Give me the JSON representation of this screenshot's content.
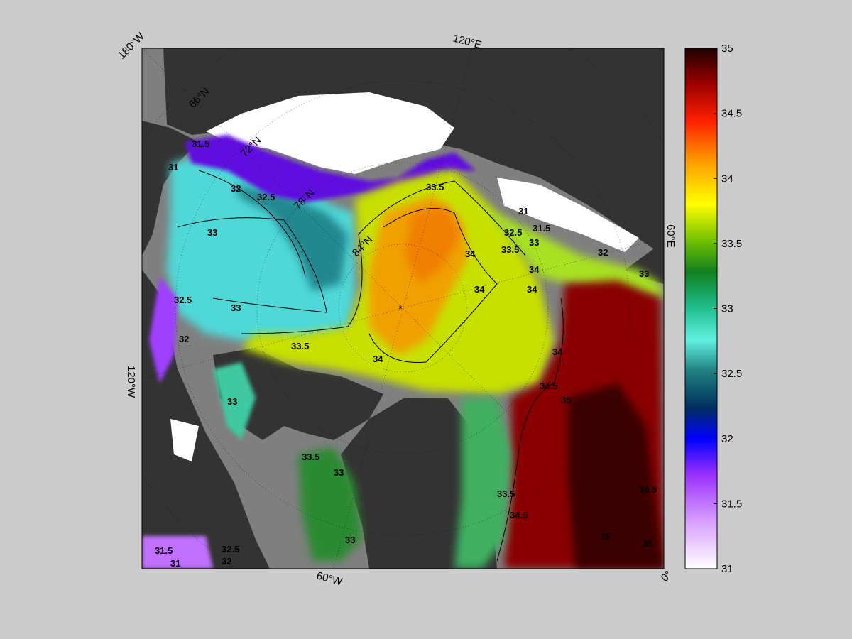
{
  "map": {
    "pole_marker": "*",
    "lon_labels": [
      "180°W",
      "120°E",
      "60°E",
      "0°",
      "60°W",
      "120°W"
    ],
    "lat_labels": [
      "66°N",
      "72°N",
      "78°N",
      "84°N"
    ],
    "contour_labels": [
      "31.5",
      "31",
      "32",
      "32.5",
      "33",
      "33.5",
      "33.5",
      "34",
      "34",
      "34",
      "33.5",
      "33",
      "32.5",
      "32",
      "31.5",
      "31",
      "32.5",
      "32",
      "33",
      "33",
      "34",
      "34",
      "34.5",
      "34.5",
      "34.5",
      "34",
      "33.5",
      "33",
      "33",
      "33.5",
      "35",
      "35",
      "35",
      "33",
      "32.5",
      "31.5",
      "31",
      "32"
    ],
    "colors": {
      "land": "#333333",
      "ice": "#ffffff",
      "frame_bg": "#808080",
      "page_bg": "#cccccc"
    }
  },
  "colorbar": {
    "min": 31,
    "max": 35,
    "tick_labels": [
      "35",
      "34.5",
      "34",
      "33.5",
      "33",
      "32.5",
      "32",
      "31.5",
      "31"
    ],
    "colormap": [
      "#ffffff",
      "#b44dff",
      "#0000ff",
      "#006080",
      "#40e0e0",
      "#20c0a0",
      "#008000",
      "#80d000",
      "#ffff00",
      "#ffa000",
      "#ff4000",
      "#a00000",
      "#200000"
    ]
  }
}
